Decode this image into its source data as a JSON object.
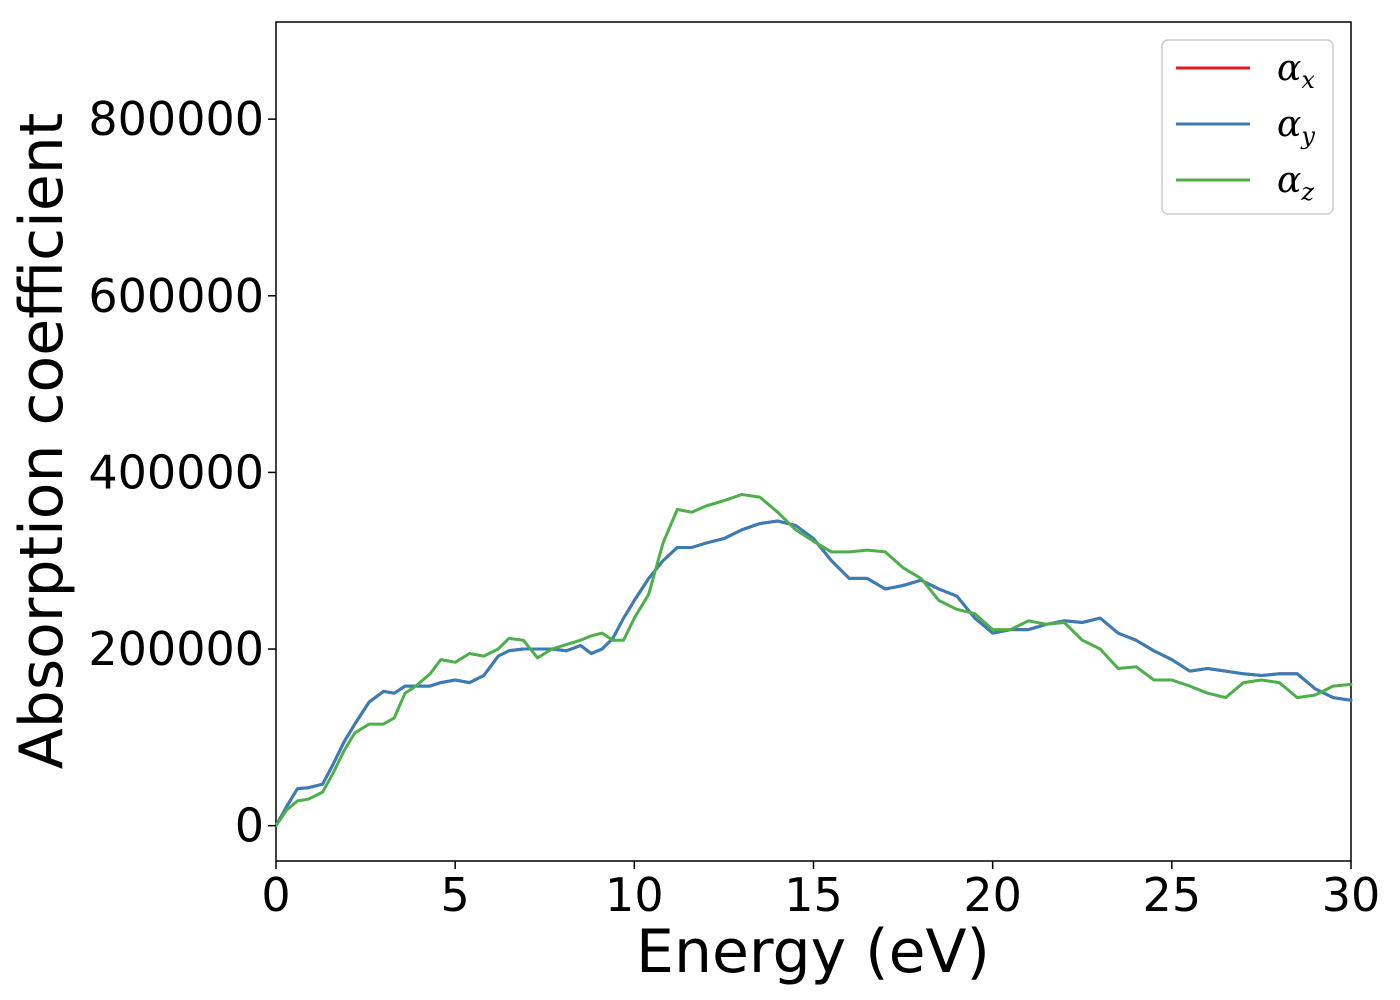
{
  "chart_data": {
    "type": "line",
    "xlabel": "Energy (eV)",
    "ylabel": "Absorption coefficient",
    "xlim": [
      0,
      30
    ],
    "ylim": [
      -40000,
      910000
    ],
    "xticks": [
      0,
      5,
      10,
      15,
      20,
      25,
      30
    ],
    "yticks": [
      0,
      200000,
      400000,
      600000,
      800000
    ],
    "xtick_labels": [
      "0",
      "5",
      "10",
      "15",
      "20",
      "25",
      "30"
    ],
    "ytick_labels": [
      "0",
      "200000",
      "400000",
      "600000",
      "800000"
    ],
    "grid": false,
    "legend_position": "top-right",
    "series": [
      {
        "name": "α_x",
        "legend_symbol": "α",
        "legend_subscript": "x",
        "color": "#e41a1c",
        "x": [
          0,
          0.3,
          0.6,
          0.9,
          1.3,
          1.6,
          1.9,
          2.2,
          2.6,
          3.0,
          3.3,
          3.6,
          3.9,
          4.3,
          4.6,
          5.0,
          5.4,
          5.8,
          6.2,
          6.5,
          6.9,
          7.3,
          7.7,
          8.1,
          8.5,
          8.8,
          9.1,
          9.4,
          9.7,
          10.0,
          10.4,
          10.8,
          11.2,
          11.6,
          12.0,
          12.5,
          13.0,
          13.5,
          14.0,
          14.5,
          15.0,
          15.5,
          16.0,
          16.5,
          17.0,
          17.5,
          18.0,
          18.5,
          19.0,
          19.5,
          20.0,
          20.5,
          21.0,
          21.5,
          22.0,
          22.5,
          23.0,
          23.5,
          24.0,
          24.5,
          25.0,
          25.5,
          26.0,
          26.5,
          27.0,
          27.5,
          28.0,
          28.5,
          29.0,
          29.5,
          30.0
        ],
        "y": [
          0,
          22000,
          42000,
          43000,
          47000,
          70000,
          95000,
          115000,
          140000,
          152000,
          150000,
          158000,
          158000,
          158000,
          162000,
          165000,
          162000,
          170000,
          192000,
          198000,
          200000,
          200000,
          200000,
          198000,
          204000,
          195000,
          200000,
          212000,
          235000,
          255000,
          280000,
          300000,
          315000,
          315000,
          320000,
          325000,
          335000,
          342000,
          345000,
          340000,
          325000,
          300000,
          280000,
          280000,
          268000,
          272000,
          278000,
          268000,
          260000,
          235000,
          218000,
          222000,
          222000,
          228000,
          232000,
          230000,
          235000,
          218000,
          210000,
          198000,
          188000,
          175000,
          178000,
          175000,
          172000,
          170000,
          172000,
          172000,
          155000,
          145000,
          142000
        ]
      },
      {
        "name": "α_y",
        "legend_symbol": "α",
        "legend_subscript": "y",
        "color": "#377eb8",
        "x": [
          0,
          0.3,
          0.6,
          0.9,
          1.3,
          1.6,
          1.9,
          2.2,
          2.6,
          3.0,
          3.3,
          3.6,
          3.9,
          4.3,
          4.6,
          5.0,
          5.4,
          5.8,
          6.2,
          6.5,
          6.9,
          7.3,
          7.7,
          8.1,
          8.5,
          8.8,
          9.1,
          9.4,
          9.7,
          10.0,
          10.4,
          10.8,
          11.2,
          11.6,
          12.0,
          12.5,
          13.0,
          13.5,
          14.0,
          14.5,
          15.0,
          15.5,
          16.0,
          16.5,
          17.0,
          17.5,
          18.0,
          18.5,
          19.0,
          19.5,
          20.0,
          20.5,
          21.0,
          21.5,
          22.0,
          22.5,
          23.0,
          23.5,
          24.0,
          24.5,
          25.0,
          25.5,
          26.0,
          26.5,
          27.0,
          27.5,
          28.0,
          28.5,
          29.0,
          29.5,
          30.0
        ],
        "y": [
          0,
          22000,
          42000,
          43000,
          47000,
          70000,
          95000,
          115000,
          140000,
          152000,
          150000,
          158000,
          158000,
          158000,
          162000,
          165000,
          162000,
          170000,
          192000,
          198000,
          200000,
          200000,
          200000,
          198000,
          204000,
          195000,
          200000,
          212000,
          235000,
          255000,
          280000,
          300000,
          315000,
          315000,
          320000,
          325000,
          335000,
          342000,
          345000,
          340000,
          325000,
          300000,
          280000,
          280000,
          268000,
          272000,
          278000,
          268000,
          260000,
          235000,
          218000,
          222000,
          222000,
          228000,
          232000,
          230000,
          235000,
          218000,
          210000,
          198000,
          188000,
          175000,
          178000,
          175000,
          172000,
          170000,
          172000,
          172000,
          155000,
          145000,
          142000
        ]
      },
      {
        "name": "α_z",
        "legend_symbol": "α",
        "legend_subscript": "z",
        "color": "#4daf4a",
        "x": [
          0,
          0.3,
          0.6,
          0.9,
          1.3,
          1.6,
          1.9,
          2.2,
          2.6,
          3.0,
          3.3,
          3.6,
          3.9,
          4.3,
          4.6,
          5.0,
          5.4,
          5.8,
          6.2,
          6.5,
          6.9,
          7.3,
          7.7,
          8.1,
          8.5,
          8.8,
          9.1,
          9.4,
          9.7,
          10.0,
          10.4,
          10.8,
          11.2,
          11.6,
          12.0,
          12.5,
          13.0,
          13.5,
          14.0,
          14.5,
          15.0,
          15.5,
          16.0,
          16.5,
          17.0,
          17.5,
          18.0,
          18.5,
          19.0,
          19.5,
          20.0,
          20.5,
          21.0,
          21.5,
          22.0,
          22.5,
          23.0,
          23.5,
          24.0,
          24.5,
          25.0,
          25.5,
          26.0,
          26.5,
          27.0,
          27.5,
          28.0,
          28.5,
          29.0,
          29.5,
          30.0
        ],
        "y": [
          0,
          18000,
          28000,
          30000,
          38000,
          60000,
          85000,
          105000,
          115000,
          115000,
          122000,
          150000,
          158000,
          172000,
          188000,
          185000,
          195000,
          192000,
          200000,
          212000,
          210000,
          190000,
          200000,
          205000,
          210000,
          215000,
          218000,
          210000,
          210000,
          235000,
          262000,
          320000,
          358000,
          355000,
          362000,
          368000,
          375000,
          372000,
          355000,
          335000,
          322000,
          310000,
          310000,
          312000,
          310000,
          292000,
          280000,
          255000,
          245000,
          240000,
          222000,
          222000,
          232000,
          228000,
          230000,
          210000,
          200000,
          178000,
          180000,
          165000,
          165000,
          158000,
          150000,
          145000,
          162000,
          165000,
          162000,
          145000,
          148000,
          158000,
          160000
        ]
      }
    ]
  }
}
